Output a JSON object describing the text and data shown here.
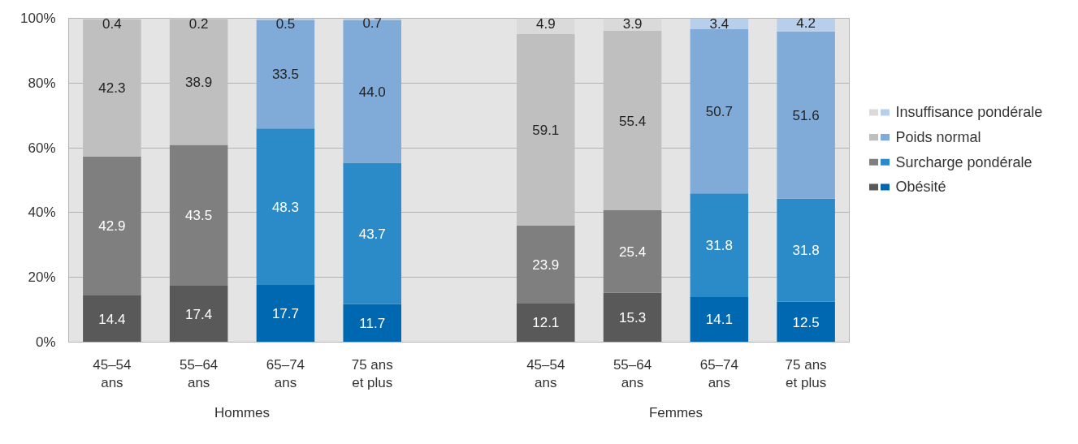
{
  "chart_data": {
    "type": "bar",
    "stacked": true,
    "categories": [
      "45–54 ans",
      "55–64 ans",
      "65–74 ans",
      "75 ans et plus",
      null,
      "45–54 ans",
      "55–64 ans",
      "65–74 ans",
      "75 ans et plus"
    ],
    "series": [
      {
        "name": "Obésité",
        "values": [
          14.4,
          17.4,
          17.7,
          11.7,
          null,
          12.1,
          15.3,
          14.1,
          12.5
        ],
        "colors": [
          "#595959",
          "#595959",
          "#0068b0",
          "#0068b0",
          null,
          "#595959",
          "#595959",
          "#0068b0",
          "#0068b0"
        ]
      },
      {
        "name": "Surcharge pondérale",
        "values": [
          42.9,
          43.5,
          48.3,
          43.7,
          null,
          23.9,
          25.4,
          31.8,
          31.8
        ],
        "colors": [
          "#7f7f7f",
          "#7f7f7f",
          "#2b8bc9",
          "#2b8bc9",
          null,
          "#7f7f7f",
          "#7f7f7f",
          "#2b8bc9",
          "#2b8bc9"
        ]
      },
      {
        "name": "Poids normal",
        "values": [
          42.3,
          38.9,
          33.5,
          44.0,
          null,
          59.1,
          55.4,
          50.7,
          51.6
        ],
        "value_labels": [
          "42.3",
          "38.9",
          "33.5",
          "44.0",
          null,
          "59.1",
          "55.4",
          "50.7",
          "51.6"
        ],
        "colors": [
          "#bfbfbf",
          "#bfbfbf",
          "#80abd8",
          "#80abd8",
          null,
          "#bfbfbf",
          "#bfbfbf",
          "#80abd8",
          "#80abd8"
        ]
      },
      {
        "name": "Insuffisance pondérale",
        "values": [
          0.4,
          0.2,
          0.5,
          0.7,
          null,
          4.9,
          3.9,
          3.4,
          4.2
        ],
        "colors": [
          "#dadada",
          "#dadada",
          "#b8cfeb",
          "#b8cfeb",
          null,
          "#dadada",
          "#dadada",
          "#b8cfeb",
          "#b8cfeb"
        ]
      }
    ],
    "annotations": [
      "Hommes",
      "Femmes"
    ],
    "ylim": [
      0,
      100
    ],
    "yticks": [
      {
        "value": 0,
        "label": "0%"
      },
      {
        "value": 20,
        "label": "20%"
      },
      {
        "value": 40,
        "label": "40%"
      },
      {
        "value": 60,
        "label": "60%"
      },
      {
        "value": 80,
        "label": "80%"
      },
      {
        "value": 100,
        "label": "100%"
      }
    ],
    "grid": "y",
    "legend": "right",
    "data_labels": true
  }
}
